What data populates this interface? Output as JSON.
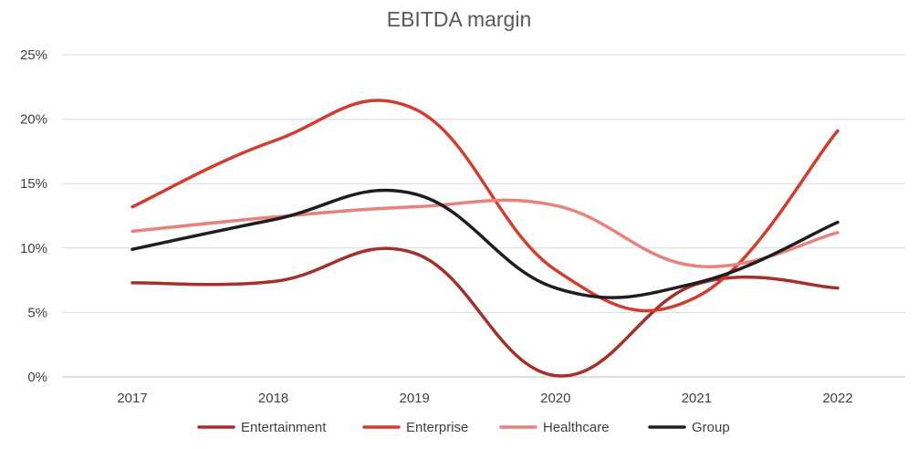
{
  "chart_data": {
    "type": "line",
    "title": "EBITDA margin",
    "xlabel": "",
    "ylabel": "",
    "categories": [
      "2017",
      "2018",
      "2019",
      "2020",
      "2021",
      "2022"
    ],
    "y_ticks": [
      "0%",
      "5%",
      "10%",
      "15%",
      "20%",
      "25%"
    ],
    "ylim": [
      0,
      25
    ],
    "grid": true,
    "smooth": true,
    "legend_position": "bottom",
    "series": [
      {
        "name": "Entertainment",
        "color": "#a4302a",
        "values": [
          7.3,
          7.4,
          9.6,
          0.1,
          7.2,
          6.9
        ]
      },
      {
        "name": "Enterprise",
        "color": "#d13d2f",
        "values": [
          13.2,
          18.3,
          20.8,
          8.3,
          6.2,
          19.1
        ]
      },
      {
        "name": "Healthcare",
        "color": "#e8837c",
        "values": [
          11.3,
          12.4,
          13.2,
          13.3,
          8.6,
          11.2
        ]
      },
      {
        "name": "Group",
        "color": "#1f1d21",
        "values": [
          9.9,
          12.2,
          14.2,
          6.9,
          7.3,
          12.0
        ]
      }
    ]
  }
}
